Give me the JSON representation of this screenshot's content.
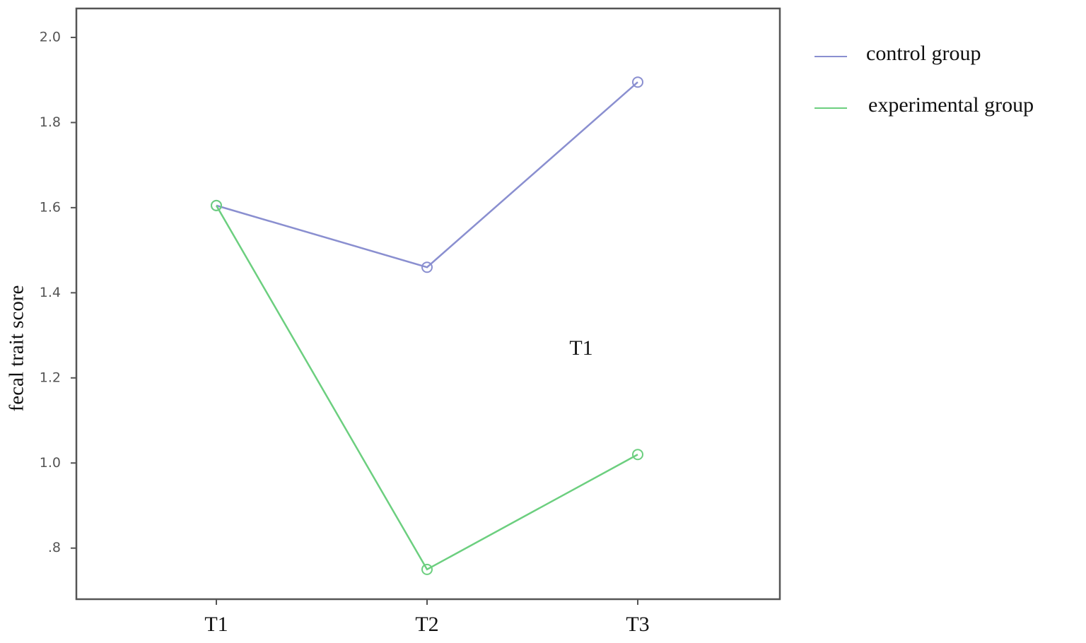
{
  "chart_data": {
    "type": "line",
    "y_label": "fecal trait score",
    "annotation": "T1",
    "categories": [
      "T1",
      "T2",
      "T3"
    ],
    "series": [
      {
        "name": "control group",
        "color": "#8a8fd0",
        "values": [
          1.605,
          1.46,
          1.895
        ]
      },
      {
        "name": "experimental group",
        "color": "#6ccf7f",
        "values": [
          1.605,
          0.75,
          1.02
        ]
      }
    ],
    "ylim": [
      0.68,
      2.068
    ],
    "yticks": [
      {
        "value": 0.8,
        "label": ".8"
      },
      {
        "value": 1.0,
        "label": "1.0"
      },
      1.2,
      1.4,
      1.6,
      1.8,
      {
        "value": 2.0,
        "label": "2.0"
      }
    ],
    "markers": "circle",
    "legend": "right"
  }
}
